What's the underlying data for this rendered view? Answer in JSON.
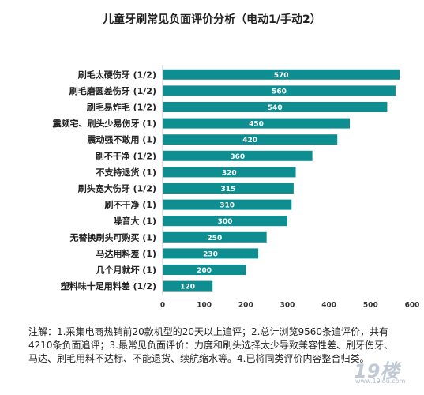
{
  "chart_data": {
    "type": "bar",
    "orientation": "horizontal",
    "title": "儿童牙刷常见负面评价分析（电动1/手动2）",
    "categories": [
      "刷毛太硬伤牙 (1/2)",
      "刷毛磨圆差伤牙 (1/2)",
      "刷毛易炸毛 (1/2)",
      "震频宅、刷头少易伤牙 (1)",
      "震动强不敢用 (1)",
      "刷不干净 (1/2)",
      "不支持退货 (1)",
      "刷头宽大伤牙 (1/2)",
      "刷不干净 (1)",
      "噪音大 (1)",
      "无替换刷头可购买 (1)",
      "马达用料差 (1)",
      "几个月就坏 (1)",
      "塑料味十足用料差 (1/2)"
    ],
    "values": [
      570,
      560,
      540,
      450,
      420,
      360,
      320,
      315,
      310,
      300,
      250,
      230,
      200,
      120
    ],
    "data_labels": [
      "570",
      "560",
      "540",
      "450",
      "420",
      "360",
      "320",
      "315",
      "310",
      "300",
      "250",
      "230",
      "200",
      "120"
    ],
    "xlim": [
      0,
      600
    ],
    "xticks": [
      "0",
      "100",
      "200",
      "300",
      "400",
      "500",
      "600"
    ],
    "grid": false,
    "legend": "none",
    "bar_color": "#0e8e91",
    "label_color": "#ffffff"
  },
  "note": "注解：1.采集电商热销前20款机型的20天以上追评；2.总计浏览9560条追评价，共有4210条负面追评；3.最常见负面评价：力度和刷头选择太少导致兼容性差、刷牙伤牙、马达、刷毛用料不达标、不能退货、续航缩水等。4.已将同类评价内容整合归类。",
  "watermark": {
    "logo_text": "19楼",
    "url": "www.19lou.com"
  }
}
